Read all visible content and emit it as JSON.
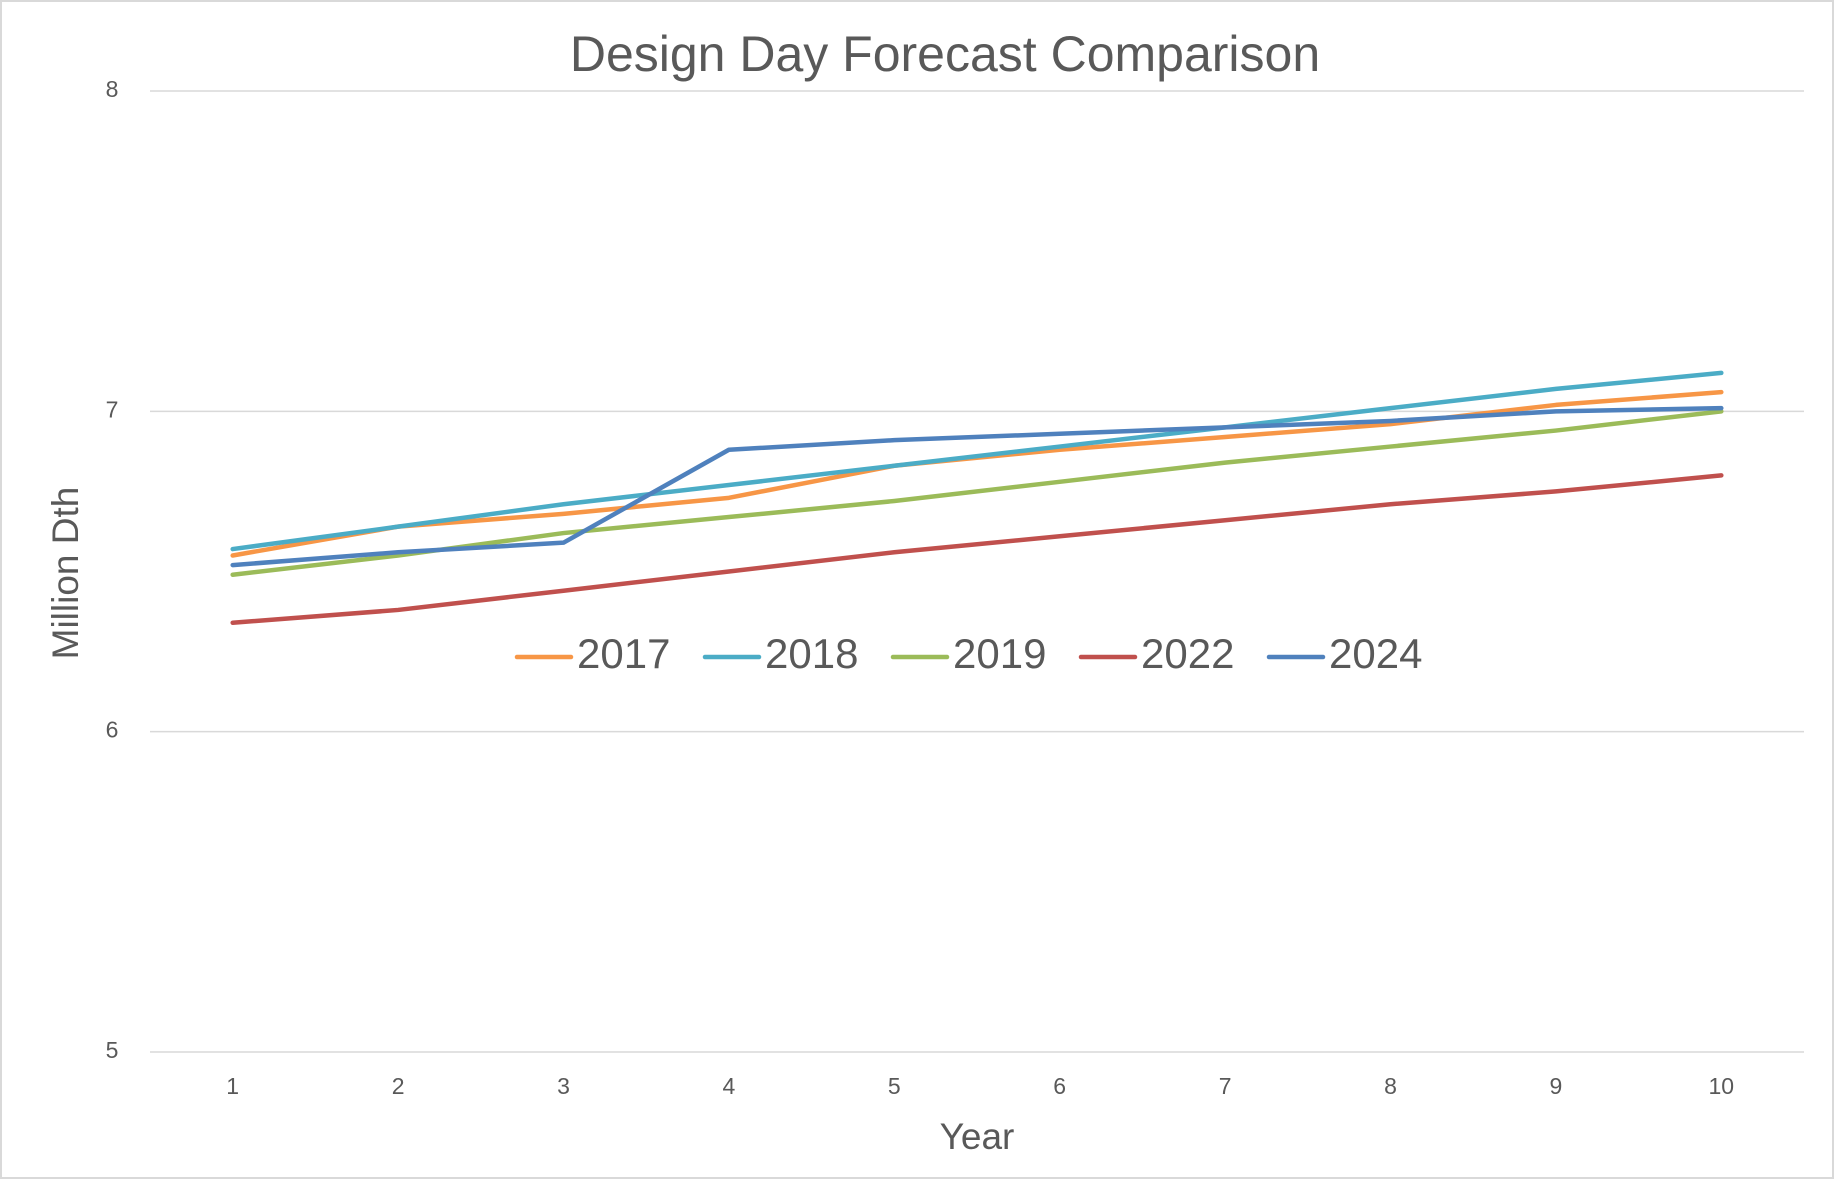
{
  "chart_data": {
    "type": "line",
    "title": "Design Day Forecast Comparison",
    "x_label": "Year",
    "y_label": "Million Dth",
    "categories": [
      "1",
      "2",
      "3",
      "4",
      "5",
      "6",
      "7",
      "8",
      "9",
      "10"
    ],
    "series": [
      {
        "name": "2017",
        "color": "#f79646",
        "values": [
          6.55,
          6.64,
          6.68,
          6.73,
          6.83,
          6.88,
          6.92,
          6.96,
          7.02,
          7.06
        ]
      },
      {
        "name": "2018",
        "color": "#4bacc6",
        "values": [
          6.57,
          6.64,
          6.71,
          6.77,
          6.83,
          6.89,
          6.95,
          7.01,
          7.07,
          7.12
        ]
      },
      {
        "name": "2019",
        "color": "#9bbb59",
        "values": [
          6.49,
          6.55,
          6.62,
          6.67,
          6.72,
          6.78,
          6.84,
          6.89,
          6.94,
          7.0
        ]
      },
      {
        "name": "2022",
        "color": "#c0504d",
        "values": [
          6.34,
          6.38,
          6.44,
          6.5,
          6.56,
          6.61,
          6.66,
          6.71,
          6.75,
          6.8
        ]
      },
      {
        "name": "2024",
        "color": "#4f81bd",
        "values": [
          6.52,
          6.56,
          6.59,
          6.88,
          6.91,
          6.93,
          6.95,
          6.97,
          7.0,
          7.01
        ]
      }
    ],
    "ylim": [
      5,
      8
    ],
    "yticks": [
      5,
      6,
      7,
      8
    ],
    "grid": true,
    "legend": "center"
  }
}
